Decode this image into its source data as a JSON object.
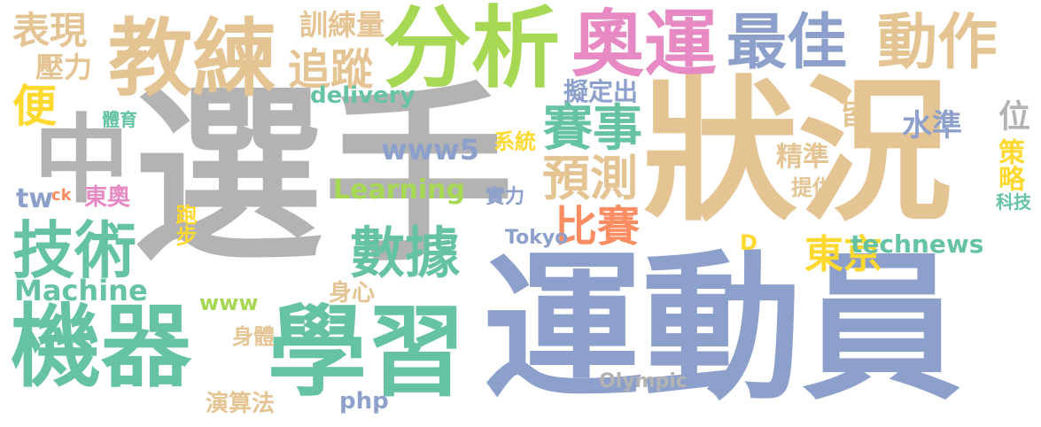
{
  "palette": {
    "gray": "#b3b3b3",
    "beige": "#e5c494",
    "green": "#a6d854",
    "pink": "#e78ac3",
    "blue": "#8da0cb",
    "teal": "#66c2a5",
    "orange": "#fc8d62",
    "yellow": "#ffd92f"
  },
  "words": [
    "選手",
    "狀況",
    "運動員",
    "機器",
    "學習",
    "教練",
    "分析",
    "奧運",
    "最佳",
    "動作",
    "中",
    "技術",
    "數據",
    "賽事",
    "預測",
    "比賽",
    "東京",
    "表現",
    "便",
    "壓力",
    "追蹤",
    "訓練量",
    "擬定出",
    "皆",
    "位",
    "水準",
    "精準",
    "策略",
    "www5",
    "Learning",
    "Machine",
    "technews",
    "Tokyo",
    "Olympic",
    "php",
    "www",
    "體育",
    "東奧",
    "跑步",
    "身心",
    "身體",
    "演算法",
    "系統",
    "實力",
    "提供",
    "科技",
    "delivery",
    "D",
    "tw",
    "ck"
  ]
}
